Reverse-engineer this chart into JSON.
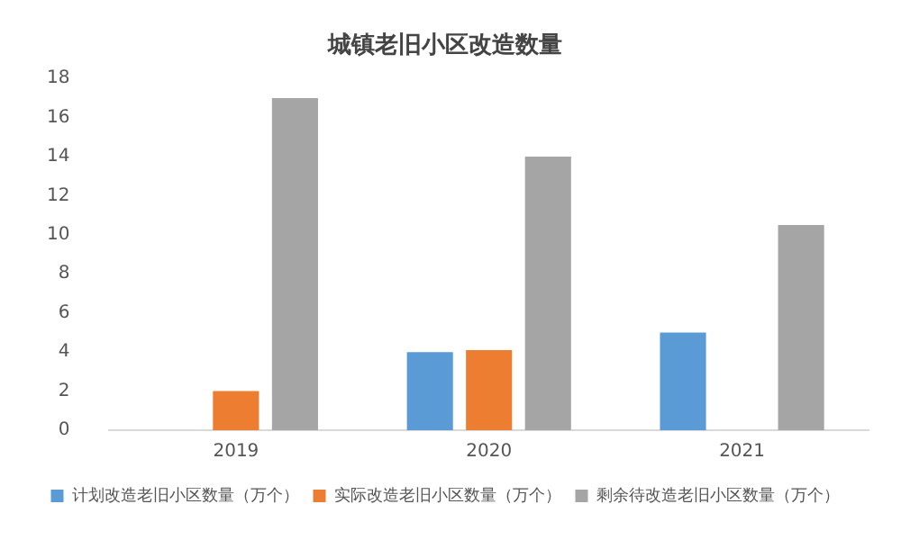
{
  "chart_data": {
    "type": "bar",
    "title": "城镇老旧小区改造数量",
    "categories": [
      "2019",
      "2020",
      "2021"
    ],
    "series": [
      {
        "name": "计划改造老旧小区数量（万个）",
        "color": "#5b9bd5",
        "values": [
          null,
          4,
          5
        ]
      },
      {
        "name": "实际改造老旧小区数量（万个）",
        "color": "#ed7d31",
        "values": [
          2,
          4.1,
          null
        ]
      },
      {
        "name": "剩余待改造老旧小区数量（万个）",
        "color": "#a5a5a5",
        "values": [
          17,
          14,
          10.5
        ]
      }
    ],
    "ylim": [
      0,
      18
    ],
    "yticks": [
      0,
      2,
      4,
      6,
      8,
      10,
      12,
      14,
      16,
      18
    ],
    "grid": false,
    "legend": "bottom"
  }
}
